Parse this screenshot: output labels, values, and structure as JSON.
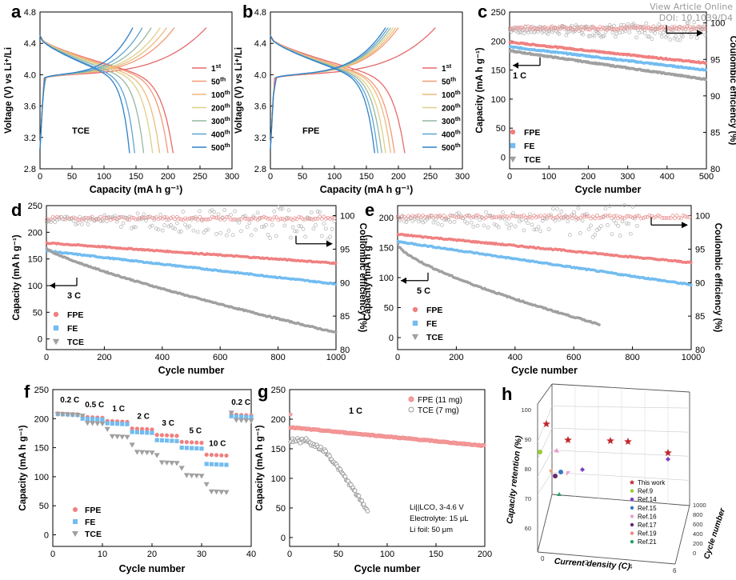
{
  "watermark": {
    "view": "View Article Online",
    "doi": "DOI: 10.1039/D4"
  },
  "colors": {
    "fpe": "#f08080",
    "fe": "#72bcf0",
    "tce": "#a0a0a0",
    "ce_fpe": "#e88a8a",
    "ce_tce": "#b0b0b0",
    "cycles": [
      "#e66a6a",
      "#f29a77",
      "#eeba7c",
      "#ddd08a",
      "#96b7a0",
      "#5fa4d0",
      "#2f80c8"
    ],
    "stars": "#c0282d"
  },
  "chart_data": [
    {
      "id": "a",
      "type": "line",
      "panel_label": "a",
      "xlabel": "Capacity (mA h g⁻¹)",
      "ylabel": "Voltage (V) vs Li⁺/Li",
      "xlim": [
        0,
        300
      ],
      "ylim": [
        2.8,
        4.8
      ],
      "xticks": [
        "0",
        "50",
        "100",
        "150",
        "200",
        "250",
        "300"
      ],
      "yticks": [
        "2.8",
        "3.2",
        "3.6",
        "4.0",
        "4.4",
        "4.8"
      ],
      "annotation": "TCE",
      "legend": [
        "1st",
        "50th",
        "100th",
        "200th",
        "300th",
        "400th",
        "500th"
      ],
      "series": [
        {
          "name": "1st",
          "charge_end": 260,
          "discharge_end": 208
        },
        {
          "name": "50th",
          "charge_end": 210,
          "discharge_end": 200
        },
        {
          "name": "100th",
          "charge_end": 198,
          "discharge_end": 187
        },
        {
          "name": "200th",
          "charge_end": 188,
          "discharge_end": 176
        },
        {
          "name": "300th",
          "charge_end": 174,
          "discharge_end": 162
        },
        {
          "name": "400th",
          "charge_end": 160,
          "discharge_end": 148
        },
        {
          "name": "500th",
          "charge_end": 145,
          "discharge_end": 140
        }
      ]
    },
    {
      "id": "b",
      "type": "line",
      "panel_label": "b",
      "xlabel": "Capacity (mA h g⁻¹)",
      "ylabel": "Voltage (V) vs Li⁺/Li",
      "xlim": [
        0,
        300
      ],
      "ylim": [
        2.8,
        4.8
      ],
      "xticks": [
        "0",
        "50",
        "100",
        "150",
        "200",
        "250",
        "300"
      ],
      "yticks": [
        "2.8",
        "3.2",
        "3.6",
        "4.0",
        "4.4",
        "4.8"
      ],
      "annotation": "FPE",
      "legend": [
        "1st",
        "50th",
        "100th",
        "200th",
        "300th",
        "400th",
        "500th"
      ],
      "series": [
        {
          "name": "1st",
          "charge_end": 258,
          "discharge_end": 210
        },
        {
          "name": "50th",
          "charge_end": 200,
          "discharge_end": 194
        },
        {
          "name": "100th",
          "charge_end": 196,
          "discharge_end": 188
        },
        {
          "name": "200th",
          "charge_end": 192,
          "discharge_end": 180
        },
        {
          "name": "300th",
          "charge_end": 188,
          "discharge_end": 174
        },
        {
          "name": "400th",
          "charge_end": 184,
          "discharge_end": 168
        },
        {
          "name": "500th",
          "charge_end": 180,
          "discharge_end": 163
        }
      ]
    },
    {
      "id": "c",
      "type": "scatter",
      "panel_label": "c",
      "xlabel": "Cycle number",
      "ylabel": "Capacity (mA h g⁻¹)",
      "y2label": "Coulombic efficiency (%)",
      "xlim": [
        0,
        500
      ],
      "ylim": [
        -20,
        250
      ],
      "y2lim": [
        80,
        101.5
      ],
      "xticks": [
        "0",
        "100",
        "200",
        "300",
        "400",
        "500"
      ],
      "yticks": [
        "0",
        "50",
        "100",
        "150",
        "200",
        "250"
      ],
      "y2ticks": [
        "80",
        "85",
        "90",
        "95",
        "100"
      ],
      "rate_label": "1 C",
      "legend": [
        "FPE",
        "FE",
        "TCE"
      ],
      "series": [
        {
          "name": "FPE",
          "start": 198,
          "end": 162
        },
        {
          "name": "FE",
          "start": 190,
          "end": 150
        },
        {
          "name": "TCE",
          "start": 183,
          "end": 134
        }
      ],
      "ce_level": 99.3
    },
    {
      "id": "d",
      "type": "scatter",
      "panel_label": "d",
      "xlabel": "Cycle number",
      "ylabel": "Capacity (mA h g⁻¹)",
      "y2label": "Coulombic efficiency (%)",
      "xlim": [
        0,
        1000
      ],
      "ylim": [
        -20,
        250
      ],
      "y2lim": [
        80,
        101.5
      ],
      "xticks": [
        "0",
        "200",
        "400",
        "600",
        "800",
        "1000"
      ],
      "yticks": [
        "0",
        "50",
        "100",
        "150",
        "200",
        "250"
      ],
      "y2ticks": [
        "80",
        "85",
        "90",
        "95",
        "100"
      ],
      "rate_label": "3 C",
      "legend": [
        "FPE",
        "FE",
        "TCE"
      ],
      "series": [
        {
          "name": "FPE",
          "start": 180,
          "end": 142
        },
        {
          "name": "FE",
          "start": 165,
          "end": 103
        },
        {
          "name": "TCE",
          "start": 170,
          "end": 12
        }
      ],
      "ce_level": 99.6
    },
    {
      "id": "e",
      "type": "scatter",
      "panel_label": "e",
      "xlabel": "Cycle number",
      "ylabel": "Capacity (mA h g⁻¹)",
      "y2label": "Coulombic efficiency (%)",
      "xlim": [
        0,
        1000
      ],
      "ylim": [
        -20,
        220
      ],
      "y2lim": [
        80,
        101.5
      ],
      "xticks": [
        "0",
        "200",
        "400",
        "600",
        "800",
        "1000"
      ],
      "yticks": [
        "0",
        "50",
        "100",
        "150",
        "200"
      ],
      "y2ticks": [
        "80",
        "85",
        "90",
        "95",
        "100"
      ],
      "rate_label": "5 C",
      "legend": [
        "FPE",
        "FE",
        "TCE"
      ],
      "series": [
        {
          "name": "FPE",
          "start": 172,
          "end": 125
        },
        {
          "name": "FE",
          "start": 160,
          "end": 88
        },
        {
          "name": "TCE",
          "start": 155,
          "end": 22,
          "last_cycle": 690
        }
      ],
      "ce_level": 99.8
    },
    {
      "id": "f",
      "type": "scatter",
      "panel_label": "f",
      "xlabel": "Cycle number",
      "ylabel": "Capacity (mA h g⁻¹)",
      "xlim": [
        0,
        40
      ],
      "ylim": [
        -20,
        250
      ],
      "xticks": [
        "0",
        "10",
        "20",
        "30",
        "40"
      ],
      "yticks": [
        "0",
        "50",
        "100",
        "150",
        "200",
        "250"
      ],
      "rates": [
        "0.2 C",
        "0.5 C",
        "1 C",
        "2 C",
        "3 C",
        "5 C",
        "10 C",
        "0.2 C"
      ],
      "legend": [
        "FPE",
        "FE",
        "TCE"
      ],
      "series": [
        {
          "name": "FPE",
          "values": [
            209,
            203,
            196,
            183,
            172,
            160,
            138,
            207
          ]
        },
        {
          "name": "FE",
          "values": [
            208,
            200,
            192,
            177,
            163,
            150,
            122,
            204
          ]
        },
        {
          "name": "TCE",
          "values": [
            208,
            193,
            170,
            143,
            125,
            103,
            75,
            198
          ]
        }
      ]
    },
    {
      "id": "g",
      "type": "scatter",
      "panel_label": "g",
      "xlabel": "Cycle number",
      "ylabel": "Capacity (mA h g⁻¹)",
      "xlim": [
        0,
        200
      ],
      "ylim": [
        -15,
        250
      ],
      "xticks": [
        "0",
        "50",
        "100",
        "150",
        "200"
      ],
      "yticks": [
        "0",
        "50",
        "100",
        "150",
        "200",
        "250"
      ],
      "rate_label": "1 C",
      "legend": [
        "FPE (11 mg)",
        "TCE (7 mg)"
      ],
      "note": [
        "Li||LCO, 3-4.6 V",
        "Electrolyte: 15 μL",
        "Li foil: 50 μm"
      ],
      "series": [
        {
          "name": "FPE (11 mg)",
          "start": 186,
          "end": 155
        },
        {
          "name": "TCE (7 mg)",
          "start": 165,
          "end": 45,
          "last_cycle": 80
        }
      ]
    },
    {
      "id": "h",
      "type": "scatter3d",
      "panel_label": "h",
      "xlabel": "Current density (C)",
      "ylabel": "Cycle number",
      "zlabel": "Capacity retention (%)",
      "zticks": [
        "60",
        "70",
        "80",
        "90",
        "100"
      ],
      "xticks": [
        "0",
        "2",
        "4",
        "6"
      ],
      "yticks": [
        "0",
        "200",
        "400",
        "600",
        "800",
        "1000"
      ],
      "legend": [
        "This work",
        "Ref.9",
        "Ref.14",
        "Ref.15",
        "Ref.16",
        "Ref.17",
        "Ref.19",
        "Ref.21"
      ],
      "legend_colors": [
        "#c0282d",
        "#9acd32",
        "#7b3fbf",
        "#3a78c0",
        "#e8a0d0",
        "#6a2a6a",
        "#f08a8a",
        "#2aa06a"
      ]
    }
  ]
}
